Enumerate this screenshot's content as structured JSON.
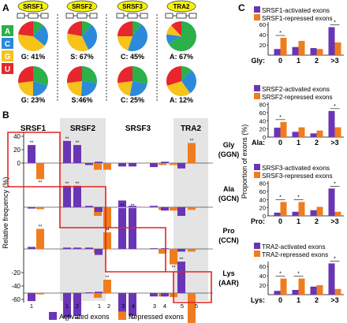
{
  "panels": {
    "a": "A",
    "b": "B",
    "c": "C"
  },
  "panel_a": {
    "proteins": [
      "SRSF1",
      "SRSF2",
      "SRSF3",
      "TRA2"
    ],
    "legend": [
      {
        "letter": "A",
        "color": "#2bb04a"
      },
      {
        "letter": "C",
        "color": "#2b8ad9"
      },
      {
        "letter": "G",
        "color": "#f7c21a"
      },
      {
        "letter": "U",
        "color": "#e8262d"
      }
    ],
    "top_labels": [
      "G: 41%",
      "S: 67%",
      "C: 45%",
      "A: 67%"
    ],
    "bottom_labels": [
      "G: 23%",
      "S:46%",
      "C: 25%",
      "A: 12%"
    ],
    "top_pies": [
      {
        "A": 12,
        "C": 24,
        "G": 41,
        "U": 23
      },
      {
        "A": 11,
        "C": 32,
        "G": 35,
        "U": 22
      },
      {
        "A": 10,
        "C": 45,
        "G": 20,
        "U": 25
      },
      {
        "A": 67,
        "C": 10,
        "G": 11,
        "U": 12
      }
    ],
    "bottom_pies": [
      {
        "A": 30,
        "C": 20,
        "G": 23,
        "U": 27
      },
      {
        "A": 27,
        "C": 24,
        "G": 22,
        "U": 27
      },
      {
        "A": 28,
        "C": 25,
        "G": 20,
        "U": 27
      },
      {
        "A": 12,
        "C": 28,
        "G": 30,
        "U": 30
      }
    ]
  },
  "panel_b": {
    "protein_headers": [
      "SRSF1",
      "SRSF2",
      "SRSF3",
      "TRA2"
    ],
    "ylabel": "Relative frequency (%)",
    "yticks": [
      "40",
      "20",
      "0",
      "-20",
      "-40",
      "-60"
    ],
    "row_labels": [
      {
        "aa": "Gly",
        "codon": "(GGN)"
      },
      {
        "aa": "Ala",
        "codon": "(GCN)"
      },
      {
        "aa": "Pro",
        "codon": "(CCN)"
      },
      {
        "aa": "Lys",
        "codon": "(AAR)"
      }
    ],
    "x_ticks": [
      "1",
      "1",
      "2",
      "1",
      "2",
      "3",
      "4",
      "3",
      "4",
      "5",
      "5"
    ],
    "legend": [
      "Activated exons",
      "Repressed exons"
    ],
    "significance_marker": "**"
  },
  "panel_c": {
    "ylabel": "Proportion of exons (%)",
    "x_categories": [
      "0",
      "1",
      "2",
      ">3"
    ],
    "subplots": [
      {
        "legend_activated": "SRSF1-activated exons",
        "legend_repressed": "SRSF1-repressed exons",
        "row_label": "Gly:",
        "yticks": [
          "20",
          "40",
          "60"
        ]
      },
      {
        "legend_activated": "SRSF2-activated exons",
        "legend_repressed": "SRSF2-repressed exons",
        "row_label": "Ala:",
        "yticks": [
          "0",
          "20",
          "40",
          "60",
          "80"
        ]
      },
      {
        "legend_activated": "SRSF3-activated exons",
        "legend_repressed": "SRSF3-repressed exons",
        "row_label": "Pro:",
        "yticks": [
          "0",
          "20",
          "40",
          "60",
          "80"
        ]
      },
      {
        "legend_activated": "TRA2-activated exons",
        "legend_repressed": "TRA2-repressed exons",
        "row_label": "Lys:",
        "yticks": [
          "20",
          "40",
          "60"
        ]
      }
    ]
  },
  "colors": {
    "activated": "#6a35b5",
    "repressed": "#ef7d1f",
    "highlight": "#e52222",
    "shade": "#e4e4e4"
  },
  "chart_data": [
    {
      "type": "bar",
      "ylabel": "Relative frequency (%)",
      "ylim": [
        -60,
        40
      ],
      "rows": [
        "Gly (GGN)",
        "Ala (GCN)",
        "Pro (CCN)",
        "Lys (AAR)"
      ],
      "x": [
        "1",
        "1",
        "2",
        "1",
        "2",
        "3",
        "4",
        "3",
        "4",
        "5",
        "5"
      ],
      "series": [
        {
          "name": "Activated exons",
          "values": [
            [
              27,
              33,
              27,
              -3,
              2,
              -5,
              -5,
              -6,
              2,
              -8,
              null
            ],
            [
              -2,
              32,
              32,
              2,
              -7,
              10,
              2,
              2,
              -5,
              -13,
              null
            ],
            [
              3,
              2,
              2,
              2,
              -9,
              61,
              61,
              1,
              1,
              -4,
              null
            ],
            [
              -12,
              -37,
              -34,
              1,
              2,
              -28,
              -34,
              -5,
              -5,
              47,
              null
            ]
          ]
        },
        {
          "name": "Repressed exons",
          "values": [
            [
              -24,
              null,
              null,
              -10,
              -10,
              null,
              null,
              -3,
              -3,
              null,
              30
            ],
            [
              -3,
              null,
              null,
              -13,
              -30,
              null,
              null,
              -4,
              -5,
              null,
              -4
            ],
            [
              30,
              null,
              null,
              -6,
              25,
              null,
              null,
              -7,
              -23,
              null,
              -4
            ],
            [
              -2,
              null,
              null,
              -7,
              20,
              null,
              null,
              -5,
              -6,
              null,
              -52
            ]
          ]
        }
      ]
    },
    {
      "type": "bar",
      "ylabel": "Proportion of exons (%)",
      "categories": [
        "0",
        "1",
        "2",
        ">3"
      ],
      "subplots": [
        {
          "row": "Gly",
          "ylim": [
            0,
            65
          ],
          "series": [
            {
              "name": "SRSF1-activated exons",
              "values": [
                12,
                16,
                14,
                55
              ]
            },
            {
              "name": "SRSF1-repressed exons",
              "values": [
                34,
                28,
                12,
                25
              ]
            }
          ]
        },
        {
          "row": "Ala",
          "ylim": [
            0,
            85
          ],
          "series": [
            {
              "name": "SRSF2-activated exons",
              "values": [
                23,
                13,
                9,
                64
              ]
            },
            {
              "name": "SRSF2-repressed exons",
              "values": [
                37,
                24,
                16,
                24
              ]
            }
          ]
        },
        {
          "row": "Pro",
          "ylim": [
            0,
            85
          ],
          "series": [
            {
              "name": "SRSF3-activated exons",
              "values": [
                8,
                10,
                14,
                67
              ]
            },
            {
              "name": "SRSF3-repressed exons",
              "values": [
                34,
                34,
                22,
                10
              ]
            }
          ]
        },
        {
          "row": "Lys",
          "ylim": [
            0,
            70
          ],
          "series": [
            {
              "name": "TRA2-activated exons",
              "values": [
                8,
                10,
                17,
                66
              ]
            },
            {
              "name": "TRA2-repressed exons",
              "values": [
                34,
                34,
                20,
                12
              ]
            }
          ]
        }
      ]
    }
  ]
}
